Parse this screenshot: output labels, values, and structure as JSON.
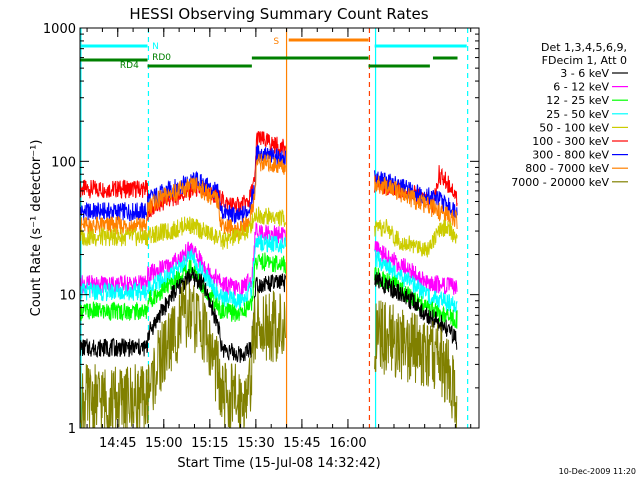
{
  "chart_data": {
    "type": "line",
    "title": "HESSI Observing Summary Count Rates",
    "xlabel": "Start Time (15-Jul-08 14:32:42)",
    "ylabel": "Count Rate (s⁻¹ detector⁻¹)",
    "ylog": true,
    "ylim": [
      1,
      1000
    ],
    "xlim_min": [
      0,
      130
    ],
    "x_ticks": [
      {
        "label": "14:45",
        "min": 12.3
      },
      {
        "label": "15:00",
        "min": 27.3
      },
      {
        "label": "15:15",
        "min": 42.3
      },
      {
        "label": "15:30",
        "min": 57.3
      },
      {
        "label": "15:45",
        "min": 72.3
      },
      {
        "label": "16:00",
        "min": 87.3
      }
    ],
    "y_ticks": [
      {
        "label": "1",
        "v": 1
      },
      {
        "label": "10",
        "v": 10
      },
      {
        "label": "100",
        "v": 100
      },
      {
        "label": "1000",
        "v": 1000
      }
    ],
    "legend_header": [
      "Det 1,3,4,5,6,9,",
      "FDecim 1, Att 0"
    ],
    "legend": [
      {
        "label": "3 - 6 keV",
        "color": "#000000"
      },
      {
        "label": "6 - 12 keV",
        "color": "#ff00ff"
      },
      {
        "label": "12 - 25 keV",
        "color": "#00ff00"
      },
      {
        "label": "25 - 50 keV",
        "color": "#00ffff"
      },
      {
        "label": "50 - 100 keV",
        "color": "#cccc00"
      },
      {
        "label": "100 - 300 keV",
        "color": "#ff0000"
      },
      {
        "label": "300 - 800 keV",
        "color": "#0000ff"
      },
      {
        "label": "800 - 7000 keV",
        "color": "#ff8000"
      },
      {
        "label": "7000 - 20000 keV",
        "color": "#808000"
      }
    ],
    "segments": [
      {
        "start": 0,
        "end": 22
      },
      {
        "start": 22,
        "end": 46
      },
      {
        "start": 46,
        "end": 67
      },
      {
        "start": 96,
        "end": 128
      }
    ],
    "series": [
      {
        "color": "#ff0000",
        "points": [
          [
            0,
            62
          ],
          [
            22,
            62
          ],
          [
            22,
            42
          ],
          [
            29,
            52
          ],
          [
            38,
            62
          ],
          [
            45,
            54
          ],
          [
            46,
            52
          ],
          [
            48,
            48
          ],
          [
            52,
            46
          ],
          [
            55,
            50
          ],
          [
            57,
            72
          ],
          [
            57.5,
            150
          ],
          [
            96,
            68
          ],
          [
            107,
            60
          ],
          [
            113,
            50
          ],
          [
            115,
            46
          ],
          [
            117,
            80
          ],
          [
            121,
            64
          ],
          [
            123,
            52
          ]
        ]
      },
      {
        "color": "#0000ff",
        "points": [
          [
            0,
            42
          ],
          [
            22,
            42
          ],
          [
            22,
            52
          ],
          [
            30,
            62
          ],
          [
            38,
            72
          ],
          [
            45,
            58
          ],
          [
            46,
            42
          ],
          [
            49,
            40
          ],
          [
            52,
            38
          ],
          [
            55,
            44
          ],
          [
            57,
            62
          ],
          [
            57.5,
            115
          ],
          [
            96,
            74
          ],
          [
            102,
            68
          ],
          [
            110,
            58
          ],
          [
            117,
            52
          ],
          [
            121,
            44
          ],
          [
            123,
            44
          ]
        ]
      },
      {
        "color": "#ff8000",
        "points": [
          [
            0,
            33
          ],
          [
            22,
            33
          ],
          [
            22,
            46
          ],
          [
            30,
            58
          ],
          [
            38,
            66
          ],
          [
            45,
            50
          ],
          [
            46,
            34
          ],
          [
            49,
            32
          ],
          [
            52,
            30
          ],
          [
            55,
            35
          ],
          [
            57,
            55
          ],
          [
            57.5,
            100
          ],
          [
            96,
            68
          ],
          [
            102,
            62
          ],
          [
            110,
            50
          ],
          [
            117,
            42
          ],
          [
            121,
            38
          ],
          [
            123,
            36
          ]
        ]
      },
      {
        "color": "#cccc00",
        "points": [
          [
            0,
            27
          ],
          [
            22,
            27
          ],
          [
            22,
            28
          ],
          [
            30,
            30
          ],
          [
            35,
            34
          ],
          [
            40,
            30
          ],
          [
            45,
            27
          ],
          [
            46,
            25
          ],
          [
            49,
            26
          ],
          [
            52,
            28
          ],
          [
            55,
            30
          ],
          [
            57,
            40
          ],
          [
            96,
            30
          ],
          [
            100,
            32
          ],
          [
            103,
            26
          ],
          [
            107,
            24
          ],
          [
            113,
            22
          ],
          [
            116,
            28
          ],
          [
            119,
            32
          ],
          [
            121,
            30
          ],
          [
            123,
            25
          ]
        ]
      },
      {
        "color": "#ff00ff",
        "points": [
          [
            0,
            12
          ],
          [
            22,
            12
          ],
          [
            22,
            14
          ],
          [
            30,
            17
          ],
          [
            36,
            22
          ],
          [
            42,
            15
          ],
          [
            45,
            13
          ],
          [
            46,
            12
          ],
          [
            52,
            11
          ],
          [
            56,
            13
          ],
          [
            57.2,
            30
          ],
          [
            96,
            22
          ],
          [
            102,
            18
          ],
          [
            108,
            15
          ],
          [
            113,
            12
          ],
          [
            118,
            12
          ],
          [
            123,
            11
          ]
        ]
      },
      {
        "color": "#00ffff",
        "points": [
          [
            0,
            10.5
          ],
          [
            22,
            10.5
          ],
          [
            22,
            11
          ],
          [
            30,
            14
          ],
          [
            36,
            19
          ],
          [
            42,
            13
          ],
          [
            45,
            10
          ],
          [
            46,
            9.5
          ],
          [
            52,
            8.8
          ],
          [
            56,
            11
          ],
          [
            57.2,
            25
          ],
          [
            96,
            19
          ],
          [
            102,
            15
          ],
          [
            108,
            12
          ],
          [
            113,
            10
          ],
          [
            118,
            9
          ],
          [
            123,
            8
          ]
        ]
      },
      {
        "color": "#00ff00",
        "points": [
          [
            0,
            7.5
          ],
          [
            22,
            7.5
          ],
          [
            22,
            9
          ],
          [
            30,
            12
          ],
          [
            36,
            16
          ],
          [
            42,
            10
          ],
          [
            45,
            8
          ],
          [
            46,
            7.5
          ],
          [
            52,
            7.2
          ],
          [
            56,
            8.5
          ],
          [
            57.2,
            18
          ],
          [
            96,
            14
          ],
          [
            102,
            12
          ],
          [
            108,
            9.5
          ],
          [
            113,
            8
          ],
          [
            118,
            7
          ],
          [
            123,
            6.5
          ]
        ]
      },
      {
        "color": "#000000",
        "points": [
          [
            0,
            4
          ],
          [
            22,
            4
          ],
          [
            22,
            5
          ],
          [
            30,
            10
          ],
          [
            36,
            14
          ],
          [
            40,
            12
          ],
          [
            45,
            6
          ],
          [
            46,
            4
          ],
          [
            52,
            3.5
          ],
          [
            56,
            4
          ],
          [
            57.2,
            12
          ],
          [
            96,
            13
          ],
          [
            102,
            11
          ],
          [
            108,
            9
          ],
          [
            113,
            7
          ],
          [
            118,
            6
          ],
          [
            123,
            4.5
          ]
        ]
      },
      {
        "color": "#808000",
        "points": [
          [
            0,
            1.6
          ],
          [
            22,
            1.6
          ],
          [
            22,
            1.9
          ],
          [
            28,
            4
          ],
          [
            34,
            7
          ],
          [
            40,
            6
          ],
          [
            45,
            2.5
          ],
          [
            46,
            1.7
          ],
          [
            52,
            1.6
          ],
          [
            55,
            1.8
          ],
          [
            57.2,
            6
          ],
          [
            96,
            5
          ],
          [
            102,
            4.5
          ],
          [
            108,
            4
          ],
          [
            113,
            3.5
          ],
          [
            118,
            3.2
          ],
          [
            121,
            2.2
          ],
          [
            123,
            1.6
          ]
        ]
      }
    ],
    "vlines": [
      {
        "min": 0.3,
        "color": "#00ffff",
        "dash": false
      },
      {
        "min": 22.3,
        "color": "#00ffff",
        "dash": true
      },
      {
        "min": 67.3,
        "color": "#ff8000",
        "dash": false
      },
      {
        "min": 94.3,
        "color": "#ff4000",
        "dash": true
      },
      {
        "min": 96.3,
        "color": "#00ffff",
        "dash": false
      },
      {
        "min": 126.3,
        "color": "#00ffff",
        "dash": true
      }
    ],
    "flag_bars": [
      {
        "min0": 0,
        "min1": 22,
        "y": 46,
        "color": "#00ffff"
      },
      {
        "min0": 96,
        "min1": 126,
        "y": 46,
        "color": "#00ffff"
      },
      {
        "min0": 68,
        "min1": 94,
        "y": 40,
        "color": "#ff8000"
      },
      {
        "min0": 0,
        "min1": 22,
        "y": 60,
        "color": "#008000"
      },
      {
        "min0": 22,
        "min1": 56,
        "y": 66,
        "color": "#008000"
      },
      {
        "min0": 56,
        "min1": 94,
        "y": 58,
        "color": "#008000"
      },
      {
        "min0": 94,
        "min1": 114,
        "y": 66,
        "color": "#008000"
      },
      {
        "min0": 115,
        "min1": 123,
        "y": 58,
        "color": "#008000"
      }
    ],
    "flag_labels": [
      {
        "text": "N",
        "min": 23.5,
        "color": "#00ffff"
      },
      {
        "text": "RD0",
        "min": 23.5,
        "color": "#008000"
      },
      {
        "text": "RD4",
        "min": 13,
        "color": "#008000"
      },
      {
        "text": "S",
        "min": 63,
        "color": "#ff8000"
      }
    ],
    "footer": "10-Dec-2009 11:20"
  }
}
